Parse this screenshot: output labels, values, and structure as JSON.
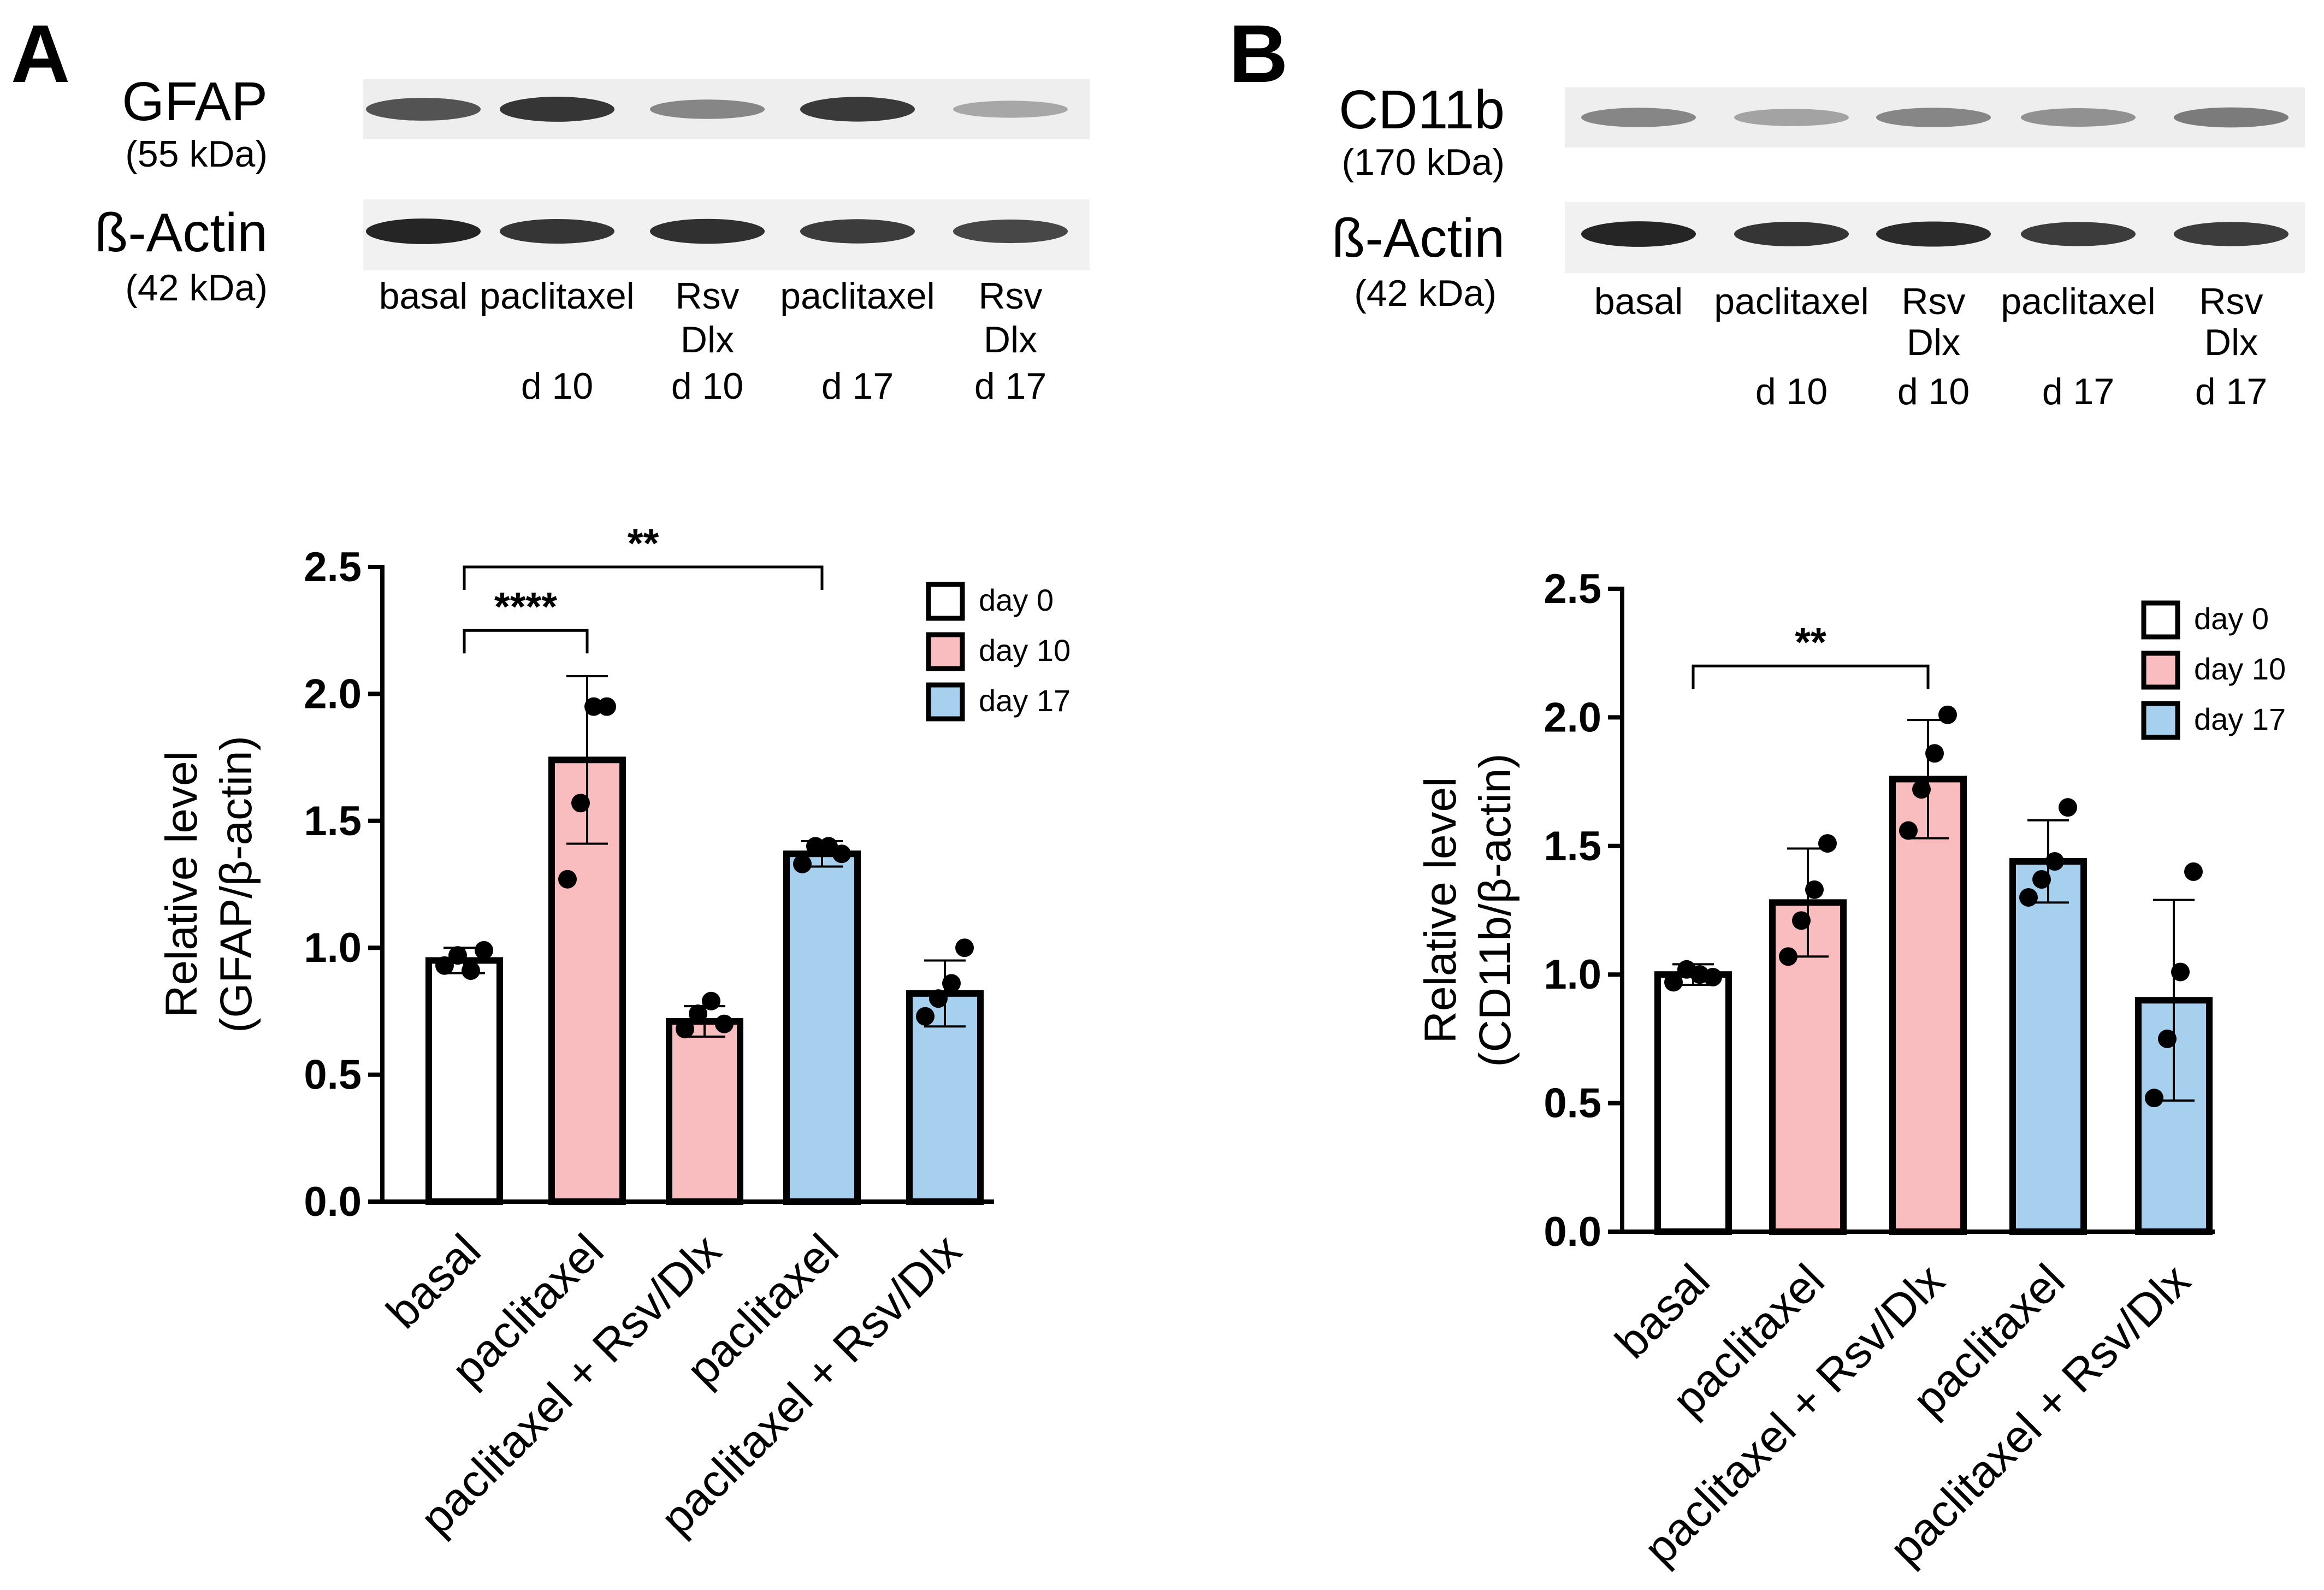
{
  "panels": {
    "A": {
      "letter": "A",
      "blot": {
        "target_name": "GFAP",
        "target_kda": "(55 kDa)",
        "control_name": "ß-Actin",
        "control_kda": "(42 kDa)",
        "lanes": [
          [
            "basal"
          ],
          [
            "paclitaxel",
            "",
            "d 10"
          ],
          [
            "Rsv",
            "Dlx",
            "d 10"
          ],
          [
            "paclitaxel",
            "",
            "d 17"
          ],
          [
            "Rsv",
            "Dlx",
            "d 17"
          ]
        ],
        "target_intensity": [
          0.78,
          0.92,
          0.55,
          0.9,
          0.4
        ],
        "control_intensity": [
          0.95,
          0.88,
          0.9,
          0.85,
          0.8
        ]
      }
    },
    "B": {
      "letter": "B",
      "blot": {
        "target_name": "CD11b",
        "target_kda": "(170 kDa)",
        "control_name": "ß-Actin",
        "control_kda": "(42 kDa)",
        "lanes": [
          [
            "basal"
          ],
          [
            "paclitaxel",
            "",
            "d 10"
          ],
          [
            "Rsv",
            "Dlx",
            "d 10"
          ],
          [
            "paclitaxel",
            "",
            "d 17"
          ],
          [
            "Rsv",
            "Dlx",
            "d 17"
          ]
        ],
        "target_intensity": [
          0.55,
          0.42,
          0.55,
          0.5,
          0.6
        ],
        "control_intensity": [
          0.95,
          0.88,
          0.92,
          0.85,
          0.85
        ]
      }
    }
  },
  "chart_data": [
    {
      "type": "bar",
      "panel": "A",
      "ylabel_line1": "Relative level",
      "ylabel_line2": "(GFAP/β-actin)",
      "ylim": [
        0,
        2.5
      ],
      "yticks": [
        "0.0",
        "0.5",
        "1.0",
        "1.5",
        "2.0",
        "2.5"
      ],
      "categories": [
        "basal",
        "paclitaxel",
        "paclitaxel + Rsv/Dlx",
        "paclitaxel",
        "paclitaxel + Rsv/Dlx"
      ],
      "groups": [
        "day 0",
        "day 10",
        "day 10",
        "day 17",
        "day 17"
      ],
      "values": [
        0.95,
        1.74,
        0.71,
        1.37,
        0.82
      ],
      "errors": [
        0.05,
        0.33,
        0.06,
        0.05,
        0.13
      ],
      "points": [
        [
          0.93,
          0.97,
          0.91,
          0.99
        ],
        [
          1.27,
          1.57,
          1.95,
          1.95
        ],
        [
          0.68,
          0.74,
          0.79,
          0.7
        ],
        [
          1.33,
          1.4,
          1.4,
          1.37
        ],
        [
          0.73,
          0.8,
          0.86,
          1.0
        ]
      ],
      "significance": [
        {
          "from": 0,
          "to": 1,
          "label": "****",
          "y": 2.25
        },
        {
          "from": 0,
          "to": 3,
          "label": "**",
          "y": 2.5
        }
      ],
      "legend": [
        {
          "label": "day 0",
          "color": "#FFFFFF"
        },
        {
          "label": "day 10",
          "color": "#F9BDBF"
        },
        {
          "label": "day 17",
          "color": "#A7D0EE"
        }
      ]
    },
    {
      "type": "bar",
      "panel": "B",
      "ylabel_line1": "Relative level",
      "ylabel_line2": "(CD11b/β-actin)",
      "ylim": [
        0,
        2.5
      ],
      "yticks": [
        "0.0",
        "0.5",
        "1.0",
        "1.5",
        "2.0",
        "2.5"
      ],
      "categories": [
        "basal",
        "paclitaxel",
        "paclitaxel + Rsv/Dlx",
        "paclitaxel",
        "paclitaxel + Rsv/Dlx"
      ],
      "groups": [
        "day 0",
        "day 10",
        "day 10",
        "day 17",
        "day 17"
      ],
      "values": [
        1.0,
        1.28,
        1.76,
        1.44,
        0.9
      ],
      "errors": [
        0.04,
        0.21,
        0.23,
        0.16,
        0.39
      ],
      "points": [
        [
          0.97,
          1.02,
          1.0,
          0.99
        ],
        [
          1.07,
          1.21,
          1.33,
          1.51
        ],
        [
          1.56,
          1.72,
          1.86,
          2.01
        ],
        [
          1.3,
          1.37,
          1.44,
          1.65
        ],
        [
          0.52,
          0.75,
          1.01,
          1.4
        ]
      ],
      "significance": [
        {
          "from": 0,
          "to": 2,
          "label": "**",
          "y": 2.2
        }
      ],
      "legend": [
        {
          "label": "day 0",
          "color": "#FFFFFF"
        },
        {
          "label": "day 10",
          "color": "#F9BDBF"
        },
        {
          "label": "day 17",
          "color": "#A7D0EE"
        }
      ]
    }
  ]
}
